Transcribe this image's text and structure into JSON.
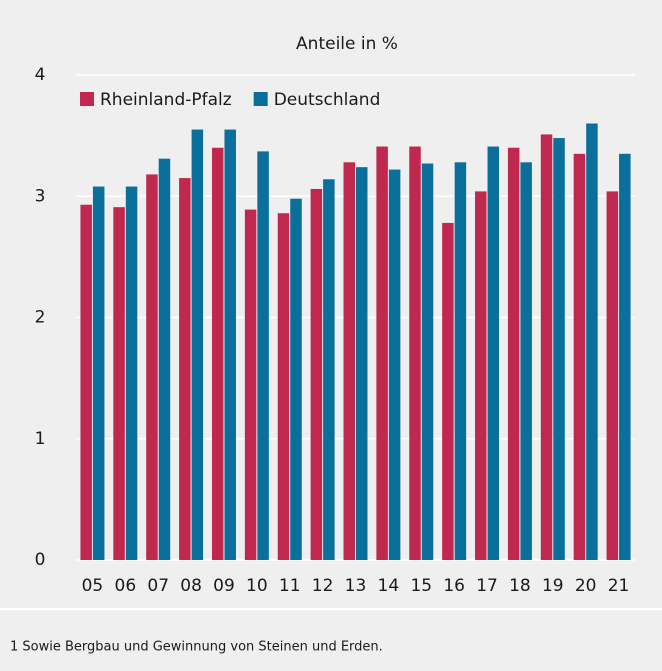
{
  "chart_data": {
    "type": "bar",
    "title": "Anteile in %",
    "categories": [
      "05",
      "06",
      "07",
      "08",
      "09",
      "10",
      "11",
      "12",
      "13",
      "14",
      "15",
      "16",
      "17",
      "18",
      "19",
      "20",
      "21"
    ],
    "series": [
      {
        "name": "Rheinland-Pfalz",
        "color": "#c0284f",
        "values": [
          2.93,
          2.91,
          3.18,
          3.15,
          3.4,
          2.89,
          2.86,
          3.06,
          3.28,
          3.41,
          3.41,
          2.78,
          3.04,
          3.4,
          3.51,
          3.35,
          3.04
        ]
      },
      {
        "name": "Deutschland",
        "color": "#0b6f9b",
        "values": [
          3.08,
          3.08,
          3.31,
          3.55,
          3.55,
          3.37,
          2.98,
          3.14,
          3.24,
          3.22,
          3.27,
          3.28,
          3.41,
          3.28,
          3.48,
          3.6,
          3.35
        ]
      }
    ],
    "ylim": [
      0,
      4
    ],
    "yticks": [
      0,
      1,
      2,
      3,
      4
    ],
    "grid": true,
    "legend": "top-left",
    "footnote": "1 Sowie Bergbau und Gewinnung von Steinen und Erden."
  }
}
